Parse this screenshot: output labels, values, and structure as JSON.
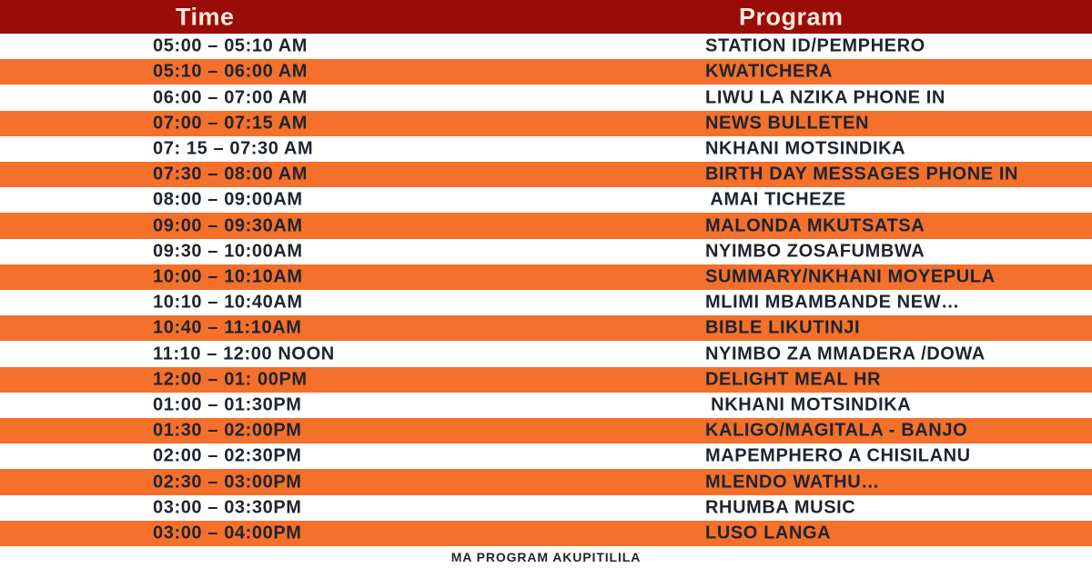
{
  "header": {
    "time_label": "Time",
    "program_label": "Program"
  },
  "rows": [
    {
      "time": "05:00 – 05:10 AM",
      "program": "STATION ID/PEMPHERO"
    },
    {
      "time": "05:10 – 06:00 AM",
      "program": "KWATICHERA"
    },
    {
      "time": "06:00 – 07:00 AM",
      "program": "LIWU LA NZIKA PHONE IN"
    },
    {
      "time": "07:00 – 07:15 AM",
      "program": "NEWS BULLETEN"
    },
    {
      "time": "07: 15 – 07:30 AM",
      "program": "NKHANI MOTSINDIKA"
    },
    {
      "time": "07:30 – 08:00 AM",
      "program": "BIRTH DAY MESSAGES PHONE IN"
    },
    {
      "time": "08:00 – 09:00AM",
      "program": " AMAI TICHEZE"
    },
    {
      "time": "09:00 – 09:30AM",
      "program": "MALONDA MKUTSATSA"
    },
    {
      "time": "09:30 – 10:00AM",
      "program": "NYIMBO ZOSAFUMBWA"
    },
    {
      "time": "10:00 – 10:10AM",
      "program": "SUMMARY/NKHANI MOYEPULA"
    },
    {
      "time": "10:10 – 10:40AM",
      "program": "MLIMI MBAMBANDE NEW…"
    },
    {
      "time": "10:40 – 11:10AM",
      "program": "BIBLE LIKUTINJI"
    },
    {
      "time": "11:10 – 12:00 NOON",
      "program": "NYIMBO ZA MMADERA /DOWA"
    },
    {
      "time": "12:00 – 01: 00PM",
      "program": "DELIGHT MEAL HR"
    },
    {
      "time": "01:00 – 01:30PM",
      "program": " NKHANI MOTSINDIKA"
    },
    {
      "time": "01:30 – 02:00PM",
      "program": "KALIGO/MAGITALA - BANJO"
    },
    {
      "time": "02:00 – 02:30PM",
      "program": "MAPEMPHERO A CHISILANU"
    },
    {
      "time": "02:30 – 03:00PM",
      "program": "MLENDO WATHU…"
    },
    {
      "time": "03:00 – 03:30PM",
      "program": "RHUMBA MUSIC"
    },
    {
      "time": "03:00 – 04:00PM",
      "program": "LUSO LANGA"
    }
  ],
  "footer": {
    "note": "MA PROGRAM AKUPITILILA"
  },
  "colors": {
    "header_bg": "#9b0c08",
    "header_text": "#f7eadc",
    "stripe_orange": "#f4702b",
    "row_bg_white": "#ffffff",
    "row_text": "#1d2430"
  }
}
